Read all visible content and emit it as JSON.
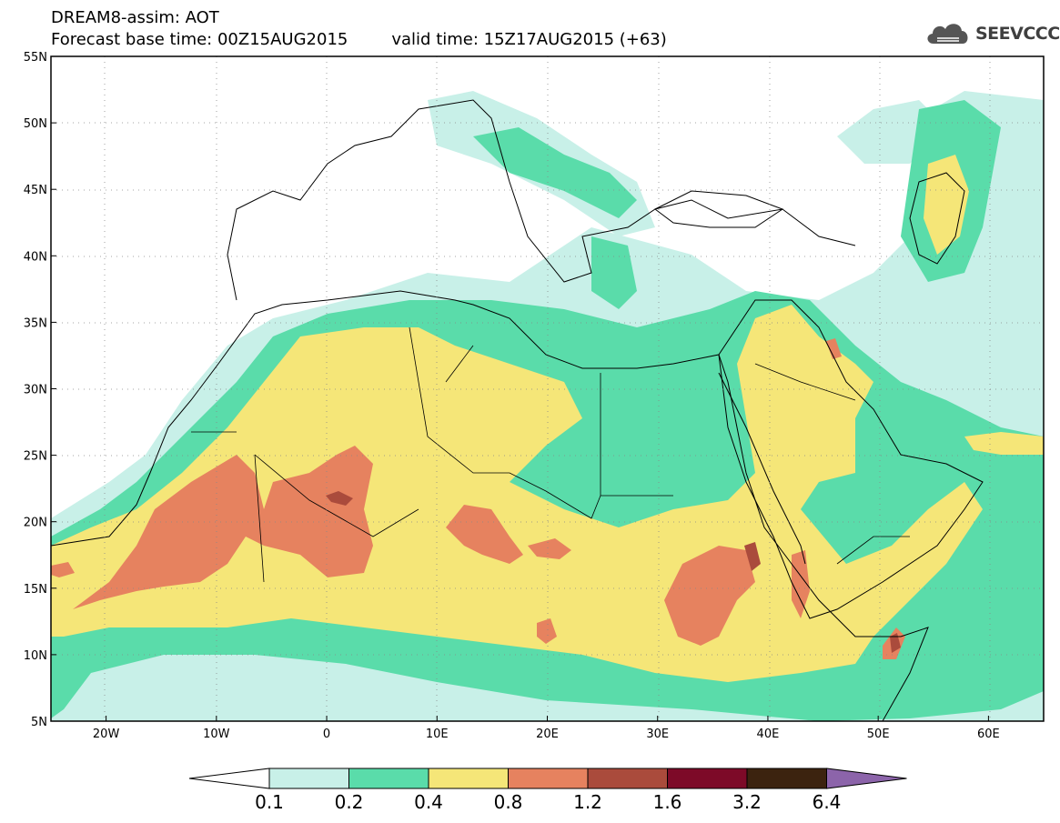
{
  "header": {
    "title_line1": "DREAM8-assim: AOT",
    "base_time": "Forecast base time: 00Z15AUG2015",
    "valid_time": "valid time: 15Z17AUG2015 (+63)"
  },
  "logo": {
    "text": "SEEVCCC",
    "icon": "cloud-icon"
  },
  "map": {
    "extent": {
      "lon_min": -25,
      "lon_max": 65,
      "lat_min": 5,
      "lat_max": 55
    },
    "lat_labels": [
      "5N",
      "10N",
      "15N",
      "20N",
      "25N",
      "30N",
      "35N",
      "40N",
      "45N",
      "50N",
      "55N"
    ],
    "lat_values": [
      5,
      10,
      15,
      20,
      25,
      30,
      35,
      40,
      45,
      50,
      55
    ],
    "lon_labels": [
      "20W",
      "10W",
      "0",
      "10E",
      "20E",
      "30E",
      "40E",
      "50E",
      "60E"
    ],
    "lon_values": [
      -20,
      -10,
      0,
      10,
      20,
      30,
      40,
      50,
      60
    ],
    "field": "Aerosol optical thickness (AOT)"
  },
  "legend": {
    "levels": [
      "0.1",
      "0.2",
      "0.4",
      "0.8",
      "1.2",
      "1.6",
      "3.2",
      "6.4"
    ],
    "colors": [
      "#c8f0e8",
      "#5adcaa",
      "#f5e678",
      "#e6825f",
      "#aa4b3c",
      "#7d0a28",
      "#3c230f",
      "#8c64aa"
    ],
    "under_color": "#ffffff"
  }
}
